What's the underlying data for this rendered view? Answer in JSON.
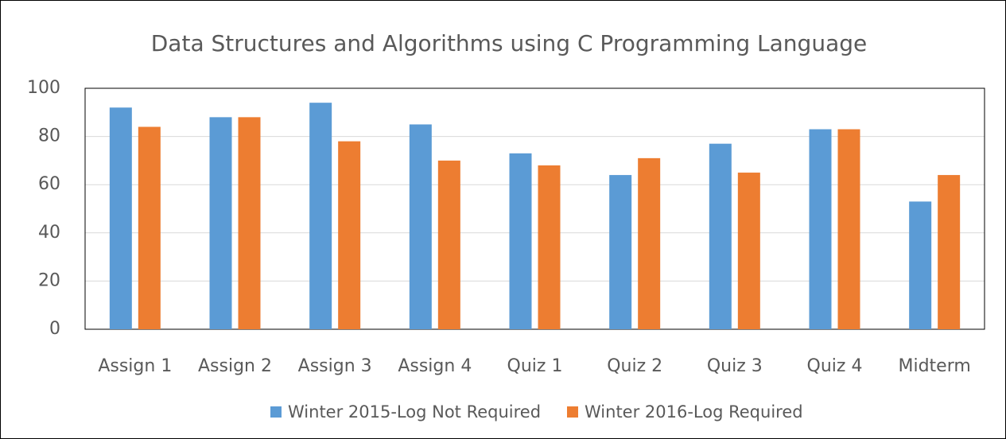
{
  "chart_data": {
    "type": "bar",
    "title": "Data Structures and Algorithms using C Programming Language",
    "categories": [
      "Assign 1",
      "Assign 2",
      "Assign 3",
      "Assign 4",
      "Quiz 1",
      "Quiz 2",
      "Quiz 3",
      "Quiz 4",
      "Midterm"
    ],
    "series": [
      {
        "name": "Winter 2015-Log Not Required",
        "color": "#5b9bd5",
        "values": [
          92,
          88,
          94,
          85,
          73,
          64,
          77,
          83,
          53
        ]
      },
      {
        "name": "Winter 2016-Log Required",
        "color": "#ed7d31",
        "values": [
          84,
          88,
          78,
          70,
          68,
          71,
          65,
          83,
          64
        ]
      }
    ],
    "ylim": [
      0,
      100
    ],
    "yticks": [
      0,
      20,
      40,
      60,
      80,
      100
    ],
    "grid": true,
    "legend": "bottom"
  }
}
